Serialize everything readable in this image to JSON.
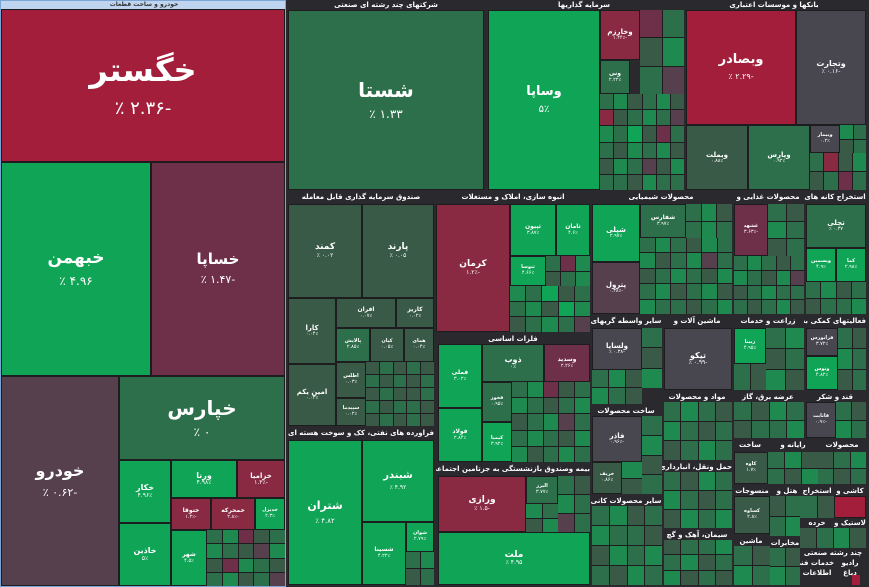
{
  "left_panel": {
    "title": "خودرو و ساخت قطعات",
    "tiles": {
      "khegostar": {
        "name": "خگستر",
        "value": "-۲.۳۶ ٪"
      },
      "khbahman": {
        "name": "خبهمن",
        "value": "۴.۹۶ ٪"
      },
      "khsapa": {
        "name": "خساپا",
        "value": "-۱.۴۷ ٪"
      },
      "khpars": {
        "name": "خپارس",
        "value": "۰ ٪"
      },
      "khodro": {
        "name": "خودرو",
        "value": "-۰.۶۲ ٪"
      },
      "khakar": {
        "name": "خکار",
        "value": "۴.۹۶٪"
      },
      "khazin": {
        "name": "خاذین",
        "value": "۵٪"
      },
      "vartna": {
        "name": "ورنا",
        "value": "۴.۹۸٪"
      },
      "khzamia": {
        "name": "خزامیا",
        "value": "-۱.۳٪"
      },
      "khmehrkeh": {
        "name": "خمحرکه",
        "value": "-۲.۸٪"
      },
      "khdizl": {
        "name": "خدیزل",
        "value": "۲.۳٪"
      },
      "khtuka": {
        "name": "ختوقا",
        "value": "-۱.۲٪"
      },
      "shahr": {
        "name": "شهر",
        "value": "۴.۵٪"
      }
    }
  },
  "sectors": {
    "chemical_multi": "شرکتهای چند رشته ای صنعتی",
    "investment": "سرمایه گذاریها",
    "banks": "بانکها و موسسات اعتباری",
    "funds": "صندوق سرمایه گذاری قابل معامله",
    "construction": "انبوه سازی، املاک و مستغلات",
    "chemical_products": "محصولات شیمیایی",
    "food": "محصولات غذایی و",
    "mining": "استخراج کانه های",
    "refining": "فراورده های نفتی، کک و سوخت هسته ای",
    "basic_metals": "فلزات اساسی",
    "other_mining": "سایر واسطه گریهای",
    "machinery": "ماشین آلات و",
    "agriculture": "زراعت و خدمات",
    "aux_activities": "فعالیتهای کمکی به",
    "electric": "عرضه برق، گاز",
    "materials": "مواد و محصولات",
    "building_products": "ساخت محصولات",
    "wood": "قند و شکر",
    "transport": "حمل ونقل، انبارداری",
    "insurance": "بیمه وصندوق بازنشستگی به جزتامین اجتماعی",
    "other_products": "سایر محصولات کانی",
    "cement": "سیمان، آهک و گچ",
    "computer": "رایانه و",
    "manufacture": "ساخت",
    "products": "محصولات",
    "tiles_ceramic": "کاشی و",
    "rubber": "لاستیک و",
    "extraction": "استخراج",
    "hotel": "هتل و",
    "pharma": "مخابرات",
    "multi_disc": "چند رشته صنعتی",
    "ma_textiles": "منسوجات",
    "sales": "خرده",
    "khadamat": "خدمات فنی",
    "farm": "اطلاعات",
    "ta_tex": "دباغ",
    "radio": "رادیو",
    "ceramic2": "کاغذ",
    "tex2": "ماشین"
  },
  "tiles": {
    "shasta": {
      "name": "شستا",
      "value": "۱.۳۳ ٪"
    },
    "vsapa": {
      "name": "وساپا",
      "value": "۵٪"
    },
    "vkharazm": {
      "name": "وخارزم",
      "value": "-۱.۴۴٪"
    },
    "vni": {
      "name": "ونی",
      "value": "۲.۲۲٪"
    },
    "vbsader": {
      "name": "وبصادر",
      "value": "-۲.۲۹ ٪"
    },
    "vtejarat": {
      "name": "وتجارت",
      "value": "-۰.۱۶ ٪"
    },
    "vbmellat": {
      "name": "وبملت",
      "value": "۰.۸۸٪"
    },
    "vpars": {
      "name": "وپارس",
      "value": "۰.۹۲٪"
    },
    "vbimar": {
      "name": "وبیمار",
      "value": "۰.۲٪"
    },
    "kamand": {
      "name": "کمند",
      "value": "۰.۰۲ ٪"
    },
    "parand": {
      "name": "پارند",
      "value": "۰.۰۵ ٪"
    },
    "afran": {
      "name": "افران",
      "value": "۰.۰۷٪"
    },
    "kariz": {
      "name": "کاریز",
      "value": "۰.۰۲٪"
    },
    "kara": {
      "name": "کارا",
      "value": "۰.۰۴٪"
    },
    "palayesh": {
      "name": "پالایش",
      "value": "۲.۸۵٪"
    },
    "kian": {
      "name": "کیان",
      "value": "۰.۰۵٪"
    },
    "hamay": {
      "name": "همای",
      "value": "۰.۰۴٪"
    },
    "aminikom": {
      "name": "امین یکم",
      "value": "۰.۰۲٪"
    },
    "atlas": {
      "name": "اطلس",
      "value": "۰.۰۳٪"
    },
    "sepidma": {
      "name": "سپیدما",
      "value": "۰.۰۲٪"
    },
    "kerman": {
      "name": "کرمان",
      "value": "-۱.۲٪"
    },
    "thisun": {
      "name": "ثپیون",
      "value": "۳.۸۷٪"
    },
    "thaman": {
      "name": "ثامان",
      "value": "۴.۶٪"
    },
    "thosa": {
      "name": "ثنوسا",
      "value": "۴.۶۶٪"
    },
    "shepli": {
      "name": "شپلی",
      "value": "۲.۹۷٪"
    },
    "shafars": {
      "name": "شفارس",
      "value": "۳.۹۷٪"
    },
    "petrol": {
      "name": "پترول",
      "value": "-۰.۳۸٪"
    },
    "ghshahd": {
      "name": "غشهد",
      "value": "-۳.۶۳٪"
    },
    "tajli": {
      "name": "تجلی",
      "value": "۰.۳۷ ٪"
    },
    "vbsmin": {
      "name": "وبسمین",
      "value": "۴.۹٪"
    },
    "kama": {
      "name": "کما",
      "value": "۲.۹۸٪"
    },
    "shtaran": {
      "name": "شتران",
      "value": "۴.۸۲ ٪"
    },
    "shbandar": {
      "name": "شبندر",
      "value": "۴.۹۲ ٪"
    },
    "shsina": {
      "name": "شسینا",
      "value": "۴.۲۲٪"
    },
    "shvan": {
      "name": "شوان",
      "value": "۲.۷۹٪"
    },
    "fmli": {
      "name": "فملی",
      "value": "۳.۰۲٪"
    },
    "zob": {
      "name": "ذوب",
      "value": "۰٪"
    },
    "vsadid": {
      "name": "وسدید",
      "value": "۲.۲۶٪"
    },
    "fkhuz": {
      "name": "فخوز",
      "value": "۰.۹۵٪"
    },
    "fulad": {
      "name": "فولاد",
      "value": "۲.۸۴٪"
    },
    "kbama": {
      "name": "کیمیا",
      "value": "۳.۹۲٪"
    },
    "vlsapa": {
      "name": "ولساپا",
      "value": "-۰.۳۸ ٪"
    },
    "tiko": {
      "name": "تیکو",
      "value": "-۰.۹۹ ٪"
    },
    "zbina": {
      "name": "زبینا",
      "value": "۴.۹۵٪"
    },
    "farvar": {
      "name": "فرابورس",
      "value": "۳.۷۲٪"
    },
    "vtos": {
      "name": "وتوس",
      "value": "۴.۸۲٪"
    },
    "fkhar": {
      "name": "فاذر",
      "value": "-۰.۹۶٪"
    },
    "kharb": {
      "name": "خریف",
      "value": "۰.۸۶٪"
    },
    "varazi": {
      "name": "ورازی",
      "value": "-۱.۵ ٪"
    },
    "vbima": {
      "name": "البرز",
      "value": "۳.۷۷٪"
    },
    "melt": {
      "name": "ملت",
      "value": "۴.۹۵ ٪"
    },
    "kalavand": {
      "name": "کاوه",
      "value": "۱.۷٪"
    },
    "kama2": {
      "name": "کساوه",
      "value": "۲.۸٪"
    },
    "kagheza": {
      "name": "قاثابت",
      "value": "-۰.۹٪"
    }
  }
}
